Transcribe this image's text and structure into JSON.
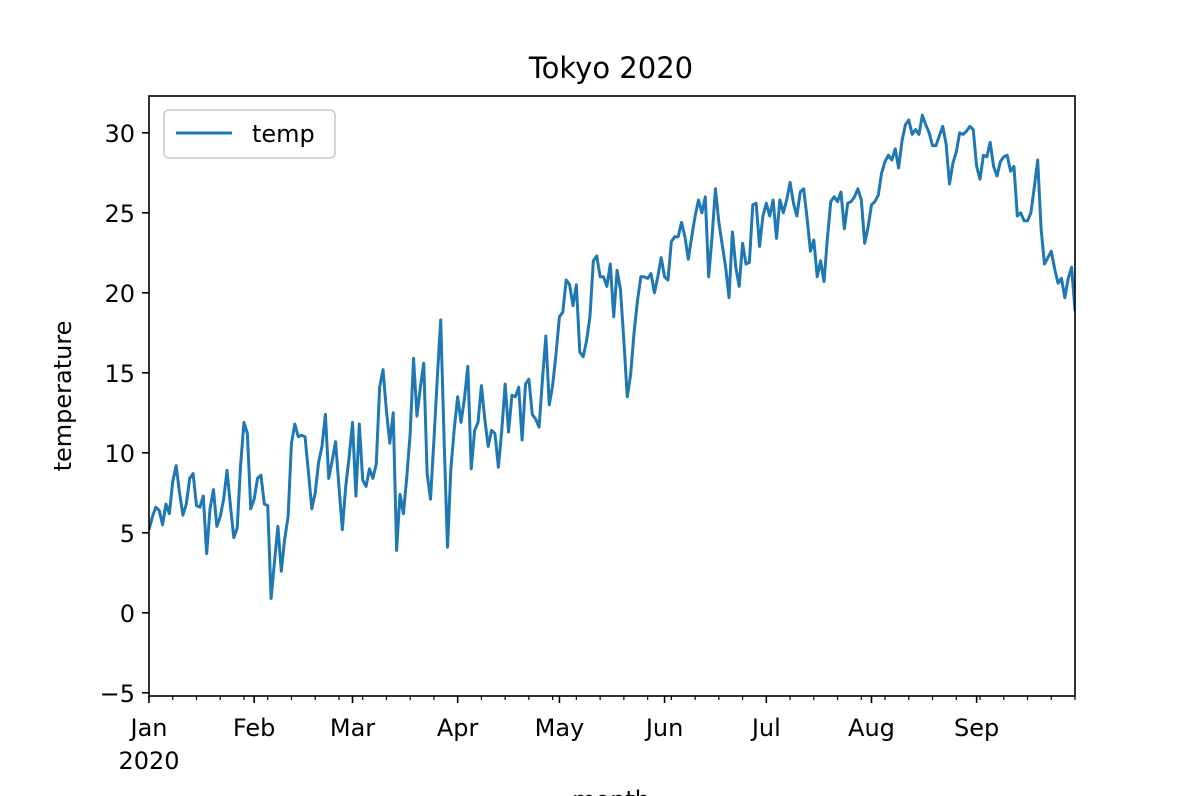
{
  "chart_data": {
    "type": "line",
    "title": "Tokyo 2020",
    "xlabel": "month",
    "ylabel": "temperature",
    "ylim": [
      -5.2,
      32.3
    ],
    "xlim": [
      "2020-01-01",
      "2020-09-30"
    ],
    "x_start": "2020-01-01",
    "y_ticks": [
      "−5",
      "0",
      "5",
      "10",
      "15",
      "20",
      "25",
      "30"
    ],
    "y_tick_values": [
      -5,
      0,
      5,
      10,
      15,
      20,
      25,
      30
    ],
    "x_ticks": [
      {
        "date": "2020-01-01",
        "label": "Jan",
        "sublabel": "2020"
      },
      {
        "date": "2020-02-01",
        "label": "Feb"
      },
      {
        "date": "2020-03-01",
        "label": "Mar"
      },
      {
        "date": "2020-04-01",
        "label": "Apr"
      },
      {
        "date": "2020-05-01",
        "label": "May"
      },
      {
        "date": "2020-06-01",
        "label": "Jun"
      },
      {
        "date": "2020-07-01",
        "label": "Jul"
      },
      {
        "date": "2020-08-01",
        "label": "Aug"
      },
      {
        "date": "2020-09-01",
        "label": "Sep"
      }
    ],
    "legend": "top-left",
    "grid": false,
    "series": [
      {
        "name": "temp",
        "color": "#1f77b4",
        "values": [
          5.2,
          6.0,
          6.6,
          6.4,
          5.5,
          6.8,
          6.2,
          8.2,
          9.2,
          7.5,
          6.1,
          6.8,
          8.4,
          8.7,
          6.7,
          6.6,
          7.3,
          3.7,
          6.5,
          7.7,
          5.4,
          6.0,
          7.1,
          8.9,
          6.7,
          4.7,
          5.3,
          9.2,
          11.9,
          11.2,
          6.5,
          7.1,
          8.4,
          8.6,
          6.8,
          6.7,
          0.9,
          3.2,
          5.4,
          2.6,
          4.6,
          6.0,
          10.6,
          11.8,
          11.0,
          11.1,
          11.0,
          8.8,
          6.5,
          7.5,
          9.4,
          10.4,
          12.4,
          8.4,
          9.5,
          10.7,
          7.9,
          5.2,
          7.9,
          9.7,
          11.9,
          7.3,
          11.8,
          8.3,
          7.9,
          9.0,
          8.4,
          9.3,
          14.1,
          15.2,
          12.6,
          10.6,
          12.5,
          3.9,
          7.4,
          6.2,
          8.5,
          11.2,
          15.9,
          12.3,
          14.1,
          15.6,
          8.7,
          7.1,
          10.8,
          14.7,
          18.3,
          10.8,
          4.1,
          9.0,
          11.5,
          13.5,
          11.9,
          13.4,
          15.4,
          9.0,
          11.4,
          11.9,
          14.2,
          12.1,
          10.4,
          11.4,
          11.2,
          9.1,
          11.4,
          14.3,
          11.3,
          13.6,
          13.5,
          14.1,
          10.8,
          14.3,
          14.6,
          12.4,
          12.1,
          11.6,
          14.6,
          17.3,
          13.0,
          14.2,
          16.2,
          18.5,
          18.8,
          20.8,
          20.5,
          19.2,
          20.5,
          16.3,
          16.0,
          17.0,
          18.5,
          22.0,
          22.3,
          21.0,
          21.0,
          20.4,
          21.8,
          18.5,
          21.4,
          20.2,
          17.0,
          13.5,
          14.9,
          17.5,
          19.5,
          21.0,
          21.0,
          20.9,
          21.2,
          20.0,
          21.0,
          22.2,
          21.0,
          20.8,
          23.2,
          23.5,
          23.5,
          24.4,
          23.5,
          22.1,
          23.5,
          24.8,
          25.8,
          25.0,
          26.0,
          21.0,
          23.5,
          26.5,
          24.4,
          23.0,
          21.6,
          19.7,
          23.8,
          21.6,
          20.4,
          23.1,
          21.8,
          21.9,
          25.5,
          25.6,
          22.9,
          24.8,
          25.6,
          24.8,
          25.8,
          23.4,
          25.8,
          25.0,
          25.8,
          26.9,
          25.6,
          24.8,
          26.3,
          26.5,
          24.7,
          22.6,
          23.3,
          21.0,
          22.0,
          20.7,
          23.4,
          25.7,
          26.0,
          25.7,
          26.3,
          24.0,
          25.6,
          25.7,
          26.0,
          26.5,
          25.8,
          23.1,
          24.1,
          25.5,
          25.7,
          26.1,
          27.5,
          28.2,
          28.6,
          28.3,
          29.0,
          27.8,
          29.5,
          30.5,
          30.8,
          29.9,
          30.2,
          29.9,
          31.1,
          30.5,
          30.0,
          29.2,
          29.2,
          29.8,
          30.4,
          29.3,
          26.8,
          28.1,
          28.8,
          30.0,
          29.9,
          30.1,
          30.4,
          30.2,
          27.9,
          27.1,
          28.6,
          28.5,
          29.4,
          27.9,
          27.3,
          28.2,
          28.5,
          28.6,
          27.6,
          27.9,
          24.8,
          25.0,
          24.5,
          24.5,
          25.0,
          26.6,
          28.3,
          24.0,
          21.8,
          22.2,
          22.6,
          21.5,
          20.6,
          20.9,
          19.7,
          20.9,
          21.6,
          18.9,
          20.9
        ]
      }
    ]
  }
}
